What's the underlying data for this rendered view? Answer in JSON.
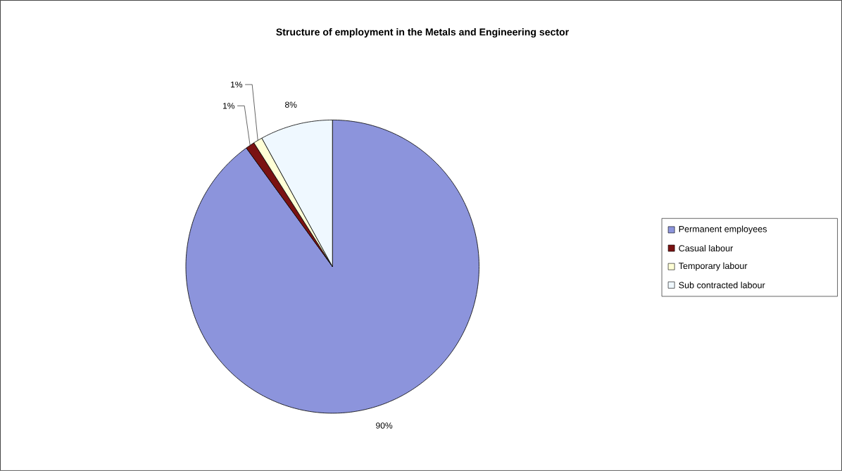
{
  "chart_data": {
    "type": "pie",
    "title": "Structure of employment in the Metals and Engineering sector",
    "categories": [
      "Permanent employees",
      "Casual labour",
      "Temporary labour",
      "Sub contracted labour"
    ],
    "values": [
      90,
      1,
      1,
      8
    ],
    "value_labels": [
      "90%",
      "1%",
      "1%",
      "8%"
    ],
    "colors": [
      "#8c94dc",
      "#7a1212",
      "#ffffd6",
      "#eff8ff"
    ],
    "legend": "right"
  }
}
